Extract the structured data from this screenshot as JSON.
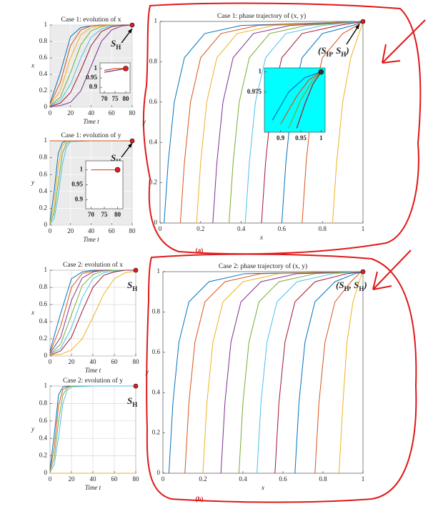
{
  "chart_data": [
    {
      "type": "line",
      "title": "Case 1: evolution of x",
      "xlabel": "Time t",
      "ylabel": "x",
      "xlim": [
        0,
        80
      ],
      "ylim": [
        0,
        1
      ],
      "xticks": [
        0,
        20,
        40,
        60,
        80
      ],
      "yticks": [
        0,
        0.2,
        0.4,
        0.6,
        0.8,
        1
      ],
      "grid": true,
      "background": "#ebebeb",
      "x": [
        0,
        10,
        20,
        30,
        40,
        50,
        60,
        70,
        80
      ],
      "series": [
        {
          "color": "#0072BD",
          "values": [
            0.05,
            0.42,
            0.86,
            0.97,
            0.99,
            1,
            1,
            1,
            1
          ]
        },
        {
          "color": "#D95319",
          "values": [
            0.04,
            0.3,
            0.75,
            0.94,
            0.99,
            1,
            1,
            1,
            1
          ]
        },
        {
          "color": "#EDB120",
          "values": [
            0.03,
            0.2,
            0.6,
            0.88,
            0.97,
            0.99,
            1,
            1,
            1
          ]
        },
        {
          "color": "#77AC30",
          "values": [
            0.02,
            0.12,
            0.42,
            0.76,
            0.93,
            0.98,
            1,
            1,
            1
          ]
        },
        {
          "color": "#4DBEEE",
          "values": [
            0.02,
            0.08,
            0.28,
            0.6,
            0.85,
            0.95,
            0.99,
            1,
            1
          ]
        },
        {
          "color": "#A2142F",
          "values": [
            0.01,
            0.05,
            0.18,
            0.45,
            0.75,
            0.92,
            0.98,
            1,
            1
          ]
        },
        {
          "color": "#7E2F8E",
          "values": [
            0.01,
            0.02,
            0.06,
            0.2,
            0.5,
            0.8,
            0.94,
            0.99,
            1
          ]
        }
      ],
      "marker": {
        "x": 80,
        "y": 1,
        "color": "#e02020"
      },
      "annotation": [
        "S",
        "H"
      ]
    },
    {
      "type": "line",
      "title": "Case 1: evolution of y",
      "xlabel": "Time t",
      "ylabel": "y",
      "xlim": [
        0,
        80
      ],
      "ylim": [
        0,
        1
      ],
      "xticks": [
        0,
        20,
        40,
        60,
        80
      ],
      "yticks": [
        0,
        0.2,
        0.4,
        0.6,
        0.8,
        1
      ],
      "grid": true,
      "background": "#ebebeb",
      "x": [
        0,
        4,
        8,
        12,
        16,
        20,
        40,
        60,
        80
      ],
      "series": [
        {
          "color": "#0072BD",
          "values": [
            0.05,
            0.4,
            0.85,
            0.98,
            1,
            1,
            1,
            1,
            1
          ]
        },
        {
          "color": "#EDB120",
          "values": [
            0.03,
            0.25,
            0.7,
            0.94,
            0.99,
            1,
            1,
            1,
            1
          ]
        },
        {
          "color": "#77AC30",
          "values": [
            0.02,
            0.15,
            0.5,
            0.85,
            0.97,
            1,
            1,
            1,
            1
          ]
        },
        {
          "color": "#4DBEEE",
          "values": [
            0.01,
            0.08,
            0.35,
            0.72,
            0.93,
            0.99,
            1,
            1,
            1
          ]
        },
        {
          "color": "#D95319",
          "values": [
            1,
            1,
            1,
            1,
            1,
            1,
            1,
            1,
            1
          ]
        }
      ],
      "marker": {
        "x": 80,
        "y": 1,
        "color": "#e02020"
      },
      "annotation": [
        "S",
        "H"
      ]
    },
    {
      "type": "line",
      "title": "Case 1: phase trajectory of (x, y)",
      "xlabel": "x",
      "ylabel": "y",
      "xlim": [
        0,
        1
      ],
      "ylim": [
        0,
        1
      ],
      "xticks": [
        0,
        0.2,
        0.4,
        0.6,
        0.8,
        1
      ],
      "yticks": [
        0,
        0.2,
        0.4,
        0.6,
        0.8,
        1
      ],
      "grid": false,
      "background": "#ffffff",
      "series": [
        {
          "color": "#0072BD",
          "x": [
            0.02,
            0.04,
            0.07,
            0.12,
            0.22,
            0.4,
            1
          ],
          "values": [
            0,
            0.3,
            0.6,
            0.82,
            0.94,
            0.98,
            1
          ]
        },
        {
          "color": "#D95319",
          "x": [
            0.1,
            0.12,
            0.15,
            0.2,
            0.3,
            0.48,
            1
          ],
          "values": [
            0,
            0.3,
            0.6,
            0.82,
            0.94,
            0.98,
            1
          ]
        },
        {
          "color": "#EDB120",
          "x": [
            0.18,
            0.2,
            0.23,
            0.28,
            0.38,
            0.56,
            1
          ],
          "values": [
            0,
            0.3,
            0.6,
            0.82,
            0.94,
            0.98,
            1
          ]
        },
        {
          "color": "#7E2F8E",
          "x": [
            0.26,
            0.28,
            0.31,
            0.36,
            0.46,
            0.64,
            1
          ],
          "values": [
            0,
            0.3,
            0.6,
            0.82,
            0.94,
            0.98,
            1
          ]
        },
        {
          "color": "#77AC30",
          "x": [
            0.34,
            0.36,
            0.39,
            0.44,
            0.54,
            0.72,
            1
          ],
          "values": [
            0,
            0.3,
            0.6,
            0.82,
            0.94,
            0.98,
            1
          ]
        },
        {
          "color": "#4DBEEE",
          "x": [
            0.42,
            0.44,
            0.47,
            0.52,
            0.62,
            0.8,
            1
          ],
          "values": [
            0,
            0.3,
            0.6,
            0.82,
            0.94,
            0.98,
            1
          ]
        },
        {
          "color": "#A2142F",
          "x": [
            0.5,
            0.52,
            0.55,
            0.6,
            0.7,
            0.88,
            1
          ],
          "values": [
            0,
            0.3,
            0.6,
            0.82,
            0.94,
            0.98,
            1
          ]
        },
        {
          "color": "#0072BD",
          "x": [
            0.6,
            0.62,
            0.65,
            0.7,
            0.8,
            0.95,
            1
          ],
          "values": [
            0,
            0.3,
            0.6,
            0.82,
            0.94,
            0.98,
            1
          ]
        },
        {
          "color": "#D95319",
          "x": [
            0.7,
            0.72,
            0.75,
            0.8,
            0.9,
            0.97,
            1
          ],
          "values": [
            0,
            0.3,
            0.6,
            0.82,
            0.94,
            0.98,
            1
          ]
        },
        {
          "color": "#EDB120",
          "x": [
            0.85,
            0.87,
            0.9,
            0.94,
            0.98,
            0.995,
            1
          ],
          "values": [
            0,
            0.3,
            0.6,
            0.82,
            0.94,
            0.98,
            1
          ]
        }
      ],
      "marker": {
        "x": 1,
        "y": 1,
        "color": "#e02020"
      },
      "annotation": [
        "(S",
        "H",
        ", S",
        "H",
        ")"
      ]
    },
    {
      "type": "line",
      "title": "Case 2: evolution of x",
      "xlabel": "Time t",
      "ylabel": "x",
      "xlim": [
        0,
        80
      ],
      "ylim": [
        0,
        1
      ],
      "xticks": [
        0,
        20,
        40,
        60,
        80
      ],
      "yticks": [
        0,
        0.2,
        0.4,
        0.6,
        0.8,
        1
      ],
      "grid": true,
      "background": "#ffffff",
      "x": [
        0,
        10,
        20,
        30,
        40,
        50,
        60,
        70,
        80
      ],
      "series": [
        {
          "color": "#0072BD",
          "values": [
            0.06,
            0.5,
            0.9,
            0.98,
            1,
            1,
            1,
            1,
            1
          ]
        },
        {
          "color": "#D95319",
          "values": [
            0.04,
            0.35,
            0.8,
            0.96,
            0.99,
            1,
            1,
            1,
            1
          ]
        },
        {
          "color": "#7E2F8E",
          "values": [
            0.03,
            0.22,
            0.65,
            0.91,
            0.98,
            1,
            1,
            1,
            1
          ]
        },
        {
          "color": "#77AC30",
          "values": [
            0.02,
            0.14,
            0.48,
            0.82,
            0.95,
            0.99,
            1,
            1,
            1
          ]
        },
        {
          "color": "#4DBEEE",
          "values": [
            0.02,
            0.09,
            0.33,
            0.68,
            0.9,
            0.97,
            0.99,
            1,
            1
          ]
        },
        {
          "color": "#A2142F",
          "values": [
            0.01,
            0.06,
            0.22,
            0.52,
            0.8,
            0.94,
            0.98,
            1,
            1
          ]
        },
        {
          "color": "#EDB120",
          "values": [
            0.01,
            0.02,
            0.07,
            0.2,
            0.45,
            0.72,
            0.9,
            0.97,
            0.99
          ]
        }
      ],
      "marker": {
        "x": 80,
        "y": 1,
        "color": "#e02020"
      },
      "annotation": [
        "S",
        "H"
      ]
    },
    {
      "type": "line",
      "title": "Case 2: evolution of y",
      "xlabel": "Time t",
      "ylabel": "y",
      "xlim": [
        0,
        80
      ],
      "ylim": [
        0,
        1
      ],
      "xticks": [
        0,
        20,
        40,
        60,
        80
      ],
      "yticks": [
        0,
        0.2,
        0.4,
        0.6,
        0.8,
        1
      ],
      "grid": true,
      "background": "#ffffff",
      "x": [
        0,
        4,
        8,
        12,
        16,
        20,
        40,
        60,
        80
      ],
      "series": [
        {
          "color": "#0072BD",
          "values": [
            0.05,
            0.45,
            0.9,
            0.99,
            1,
            1,
            1,
            1,
            1
          ]
        },
        {
          "color": "#D95319",
          "values": [
            0.03,
            0.3,
            0.78,
            0.96,
            0.99,
            1,
            1,
            1,
            1
          ]
        },
        {
          "color": "#77AC30",
          "values": [
            0.02,
            0.18,
            0.6,
            0.9,
            0.98,
            1,
            1,
            1,
            1
          ]
        },
        {
          "color": "#4DBEEE",
          "values": [
            0.01,
            0.1,
            0.42,
            0.8,
            0.95,
            0.99,
            1,
            1,
            1
          ]
        },
        {
          "color": "#EDB120",
          "values": [
            0,
            0,
            0,
            0,
            0,
            0,
            0,
            0,
            0
          ]
        }
      ],
      "marker": {
        "x": 80,
        "y": 1,
        "color": "#e02020"
      },
      "annotation": [
        "S",
        "H"
      ]
    },
    {
      "type": "line",
      "title": "Case 2: phase trajectory of (x, y)",
      "xlabel": "x",
      "ylabel": "y",
      "xlim": [
        0,
        1
      ],
      "ylim": [
        0,
        1
      ],
      "xticks": [
        0,
        0.2,
        0.4,
        0.6,
        0.8,
        1
      ],
      "yticks": [
        0,
        0.2,
        0.4,
        0.6,
        0.8,
        1
      ],
      "grid": false,
      "background": "#ffffff",
      "series": [
        {
          "color": "#0072BD",
          "x": [
            0.03,
            0.05,
            0.08,
            0.13,
            0.23,
            0.41,
            1
          ],
          "values": [
            0,
            0.35,
            0.65,
            0.85,
            0.95,
            0.99,
            1
          ]
        },
        {
          "color": "#D95319",
          "x": [
            0.11,
            0.13,
            0.16,
            0.21,
            0.31,
            0.49,
            1
          ],
          "values": [
            0,
            0.35,
            0.65,
            0.85,
            0.95,
            0.99,
            1
          ]
        },
        {
          "color": "#EDB120",
          "x": [
            0.2,
            0.22,
            0.25,
            0.3,
            0.4,
            0.58,
            1
          ],
          "values": [
            0,
            0.35,
            0.65,
            0.85,
            0.95,
            0.99,
            1
          ]
        },
        {
          "color": "#7E2F8E",
          "x": [
            0.29,
            0.31,
            0.34,
            0.39,
            0.49,
            0.67,
            1
          ],
          "values": [
            0,
            0.35,
            0.65,
            0.85,
            0.95,
            0.99,
            1
          ]
        },
        {
          "color": "#77AC30",
          "x": [
            0.38,
            0.4,
            0.43,
            0.48,
            0.58,
            0.76,
            1
          ],
          "values": [
            0,
            0.35,
            0.65,
            0.85,
            0.95,
            0.99,
            1
          ]
        },
        {
          "color": "#4DBEEE",
          "x": [
            0.47,
            0.49,
            0.52,
            0.57,
            0.67,
            0.85,
            1
          ],
          "values": [
            0,
            0.35,
            0.65,
            0.85,
            0.95,
            0.99,
            1
          ]
        },
        {
          "color": "#A2142F",
          "x": [
            0.56,
            0.58,
            0.61,
            0.66,
            0.76,
            0.92,
            1
          ],
          "values": [
            0,
            0.35,
            0.65,
            0.85,
            0.95,
            0.99,
            1
          ]
        },
        {
          "color": "#0072BD",
          "x": [
            0.66,
            0.68,
            0.71,
            0.76,
            0.86,
            0.96,
            1
          ],
          "values": [
            0,
            0.35,
            0.65,
            0.85,
            0.95,
            0.99,
            1
          ]
        },
        {
          "color": "#D95319",
          "x": [
            0.76,
            0.78,
            0.81,
            0.86,
            0.94,
            0.98,
            1
          ],
          "values": [
            0,
            0.35,
            0.65,
            0.85,
            0.95,
            0.99,
            1
          ]
        },
        {
          "color": "#EDB120",
          "x": [
            0.88,
            0.9,
            0.92,
            0.95,
            0.98,
            0.995,
            1
          ],
          "values": [
            0,
            0.35,
            0.65,
            0.85,
            0.95,
            0.99,
            1
          ]
        }
      ],
      "marker": {
        "x": 1,
        "y": 1,
        "color": "#e02020"
      },
      "annotation": [
        "(S",
        "H",
        ", S",
        "H",
        ")"
      ]
    },
    {
      "type": "line",
      "xlim": [
        68,
        82
      ],
      "ylim": [
        0.87,
        1.03
      ],
      "xticks": [
        70,
        75,
        80
      ],
      "yticks": [
        0.9,
        0.95,
        1
      ],
      "grid": false,
      "background": "#ffffff",
      "x": [
        70,
        75,
        80
      ],
      "series": [
        {
          "color": "#D95319",
          "values": [
            0.99,
            1,
            1
          ]
        },
        {
          "color": "#7E2F8E",
          "values": [
            0.98,
            0.99,
            1
          ]
        }
      ],
      "marker": {
        "x": 80,
        "y": 1,
        "color": "#e02020"
      }
    },
    {
      "type": "line",
      "xlim": [
        68,
        82
      ],
      "ylim": [
        0.87,
        1.03
      ],
      "xticks": [
        70,
        75,
        80
      ],
      "yticks": [
        0.9,
        0.95,
        1
      ],
      "grid": false,
      "background": "#ffffff",
      "x": [
        70,
        75,
        80
      ],
      "series": [
        {
          "color": "#D95319",
          "values": [
            1,
            1,
            1
          ]
        }
      ],
      "marker": {
        "x": 80,
        "y": 1,
        "color": "#e02020"
      }
    },
    {
      "type": "line",
      "xlim": [
        0.86,
        1.01
      ],
      "ylim": [
        0.925,
        1.005
      ],
      "xticks": [
        0.9,
        0.95,
        1
      ],
      "yticks": [
        0.975,
        1
      ],
      "grid": false,
      "background": "#00ffff",
      "series": [
        {
          "color": "#0072BD",
          "x": [
            0.88,
            0.92,
            0.96,
            1
          ],
          "values": [
            0.94,
            0.975,
            0.993,
            1
          ]
        },
        {
          "color": "#D95319",
          "x": [
            0.9,
            0.94,
            0.97,
            1
          ],
          "values": [
            0.935,
            0.97,
            0.99,
            1
          ]
        },
        {
          "color": "#77AC30",
          "x": [
            0.92,
            0.95,
            0.98,
            1
          ],
          "values": [
            0.93,
            0.965,
            0.99,
            1
          ]
        },
        {
          "color": "#A2142F",
          "x": [
            0.94,
            0.96,
            0.98,
            1
          ],
          "values": [
            0.93,
            0.96,
            0.985,
            1
          ]
        }
      ],
      "marker": {
        "x": 1,
        "y": 1,
        "color": "#333333"
      }
    }
  ],
  "panel_labels": [
    "(a)",
    "(b)"
  ]
}
